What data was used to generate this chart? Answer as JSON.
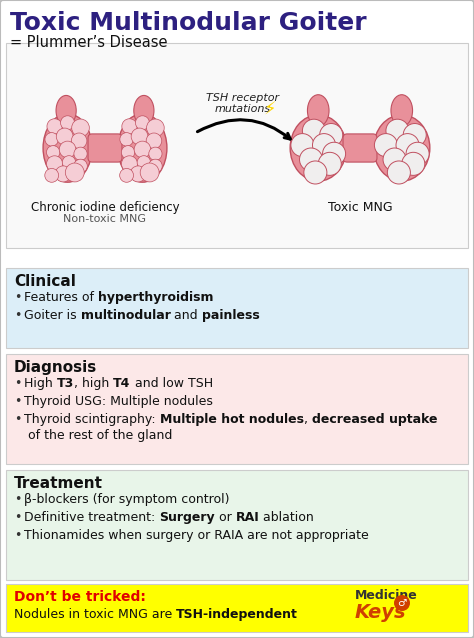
{
  "title": "Toxic Multinodular Goiter",
  "subtitle": "= Plummer’s Disease",
  "title_color": "#2d2080",
  "bg_color": "#ffffff",
  "border_color": "#bbbbbb",
  "arrow_label_line1": "TSH receptor",
  "arrow_label_line2": "mutations",
  "left_label1": "Chronic iodine deficiency",
  "left_label2": "Non-toxic MNG",
  "right_label": "Toxic MNG",
  "clinical_bg": "#dceef8",
  "clinical_title": "Clinical",
  "diagnosis_bg": "#fce8e8",
  "diagnosis_title": "Diagnosis",
  "treatment_bg": "#e8f5e9",
  "treatment_title": "Treatment",
  "trick_bg": "#ffff00",
  "trick_label": "Don’t be tricked:",
  "trick_text": "Nodules in toxic MNG are ",
  "trick_bold": "TSH-independent",
  "trick_label_color": "#e00000",
  "thyroid_color": "#e8909a",
  "thyroid_edge": "#c05060",
  "nodule_small": "#f5cdd5",
  "nodule_large": "#f0eeee",
  "med_keys_color": "#333333",
  "med_keys_accent": "#d04000"
}
